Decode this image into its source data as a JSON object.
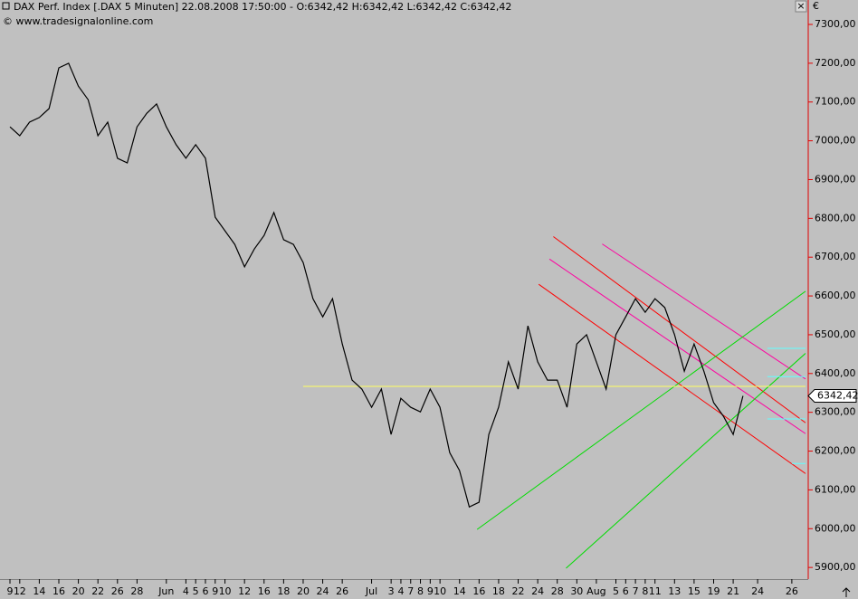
{
  "chart_data": {
    "type": "line",
    "title": "DAX Perf. Index [.DAX  5 Minuten] 22.08.2008 17:50:00 - O:6342,42 H:6342,42 L:6342,42 C:6342,42",
    "subtitle": "© www.tradesignalonline.com",
    "currency_symbol": "€",
    "close_symbol": "×",
    "x": [
      0,
      1,
      2,
      3,
      4,
      5,
      6,
      7,
      8,
      9,
      10,
      11,
      12,
      13,
      14,
      15,
      16,
      17,
      18,
      19,
      20,
      21,
      22,
      23,
      24,
      25,
      26,
      27,
      28,
      29,
      30,
      31,
      32,
      33,
      34,
      35,
      36,
      37,
      38,
      39,
      40,
      41,
      42,
      43,
      44,
      45,
      46,
      47,
      48,
      49,
      50,
      51,
      52,
      53,
      54,
      55,
      56,
      57,
      58,
      59,
      60,
      61,
      62,
      63,
      64,
      65,
      66,
      67,
      68,
      69,
      70,
      71,
      72,
      73,
      74,
      75
    ],
    "series": [
      {
        "color": "#000000",
        "values": [
          7036,
          7013,
          7048,
          7060,
          7083,
          7188,
          7200,
          7141,
          7106,
          7013,
          7048,
          6955,
          6943,
          7036,
          7071,
          7095,
          7036,
          6990,
          6955,
          6990,
          6955,
          6803,
          6768,
          6733,
          6675,
          6721,
          6756,
          6815,
          6745,
          6733,
          6686,
          6593,
          6546,
          6593,
          6476,
          6383,
          6360,
          6313,
          6360,
          6243,
          6336,
          6313,
          6301,
          6360,
          6313,
          6196,
          6150,
          6056,
          6068,
          6243,
          6313,
          6430,
          6360,
          6523,
          6430,
          6383,
          6383,
          6313,
          6476,
          6500,
          6430,
          6360,
          6500,
          6546,
          6593,
          6558,
          6593,
          6570,
          6500,
          6406,
          6476,
          6406,
          6325,
          6290,
          6243,
          6342.42
        ]
      }
    ],
    "lines": [
      {
        "color": "#ff0000",
        "x": [
          55.6,
          81.4
        ],
        "values": [
          6753,
          6273
        ]
      },
      {
        "color": "#ff0000",
        "x": [
          54.1,
          81.4
        ],
        "values": [
          6630,
          6142
        ]
      },
      {
        "color": "#ff00a0",
        "x": [
          60.6,
          81.4
        ],
        "values": [
          6734,
          6386
        ]
      },
      {
        "color": "#ff00a0",
        "x": [
          55.2,
          81.4
        ],
        "values": [
          6695,
          6245
        ]
      },
      {
        "color": "#00dd00",
        "x": [
          47.8,
          81.4
        ],
        "values": [
          5998,
          6612
        ]
      },
      {
        "color": "#00dd00",
        "x": [
          56.9,
          81.4
        ],
        "values": [
          5898,
          6452
        ]
      },
      {
        "color": "#ffff60",
        "x": [
          30,
          81.4
        ],
        "values": [
          6367,
          6367
        ]
      },
      {
        "color": "#60ffff",
        "x": [
          77.5,
          81.4
        ],
        "values": [
          6465,
          6465
        ]
      },
      {
        "color": "#60ffff",
        "x": [
          77.5,
          81.4
        ],
        "values": [
          6392,
          6392
        ]
      },
      {
        "color": "#60ffff",
        "x": [
          77.5,
          81.4
        ],
        "values": [
          6283,
          6283
        ]
      },
      {
        "color": "#60ffff",
        "x": [
          80,
          81.4
        ],
        "values": [
          6168,
          6168
        ]
      }
    ],
    "last_label": {
      "value": 6342.42,
      "label": "6342,42"
    },
    "xlim": [
      -1.02,
      81.4
    ],
    "ylim": [
      5870,
      7363
    ],
    "yticks": [
      {
        "value": 5900,
        "label": "5900,00"
      },
      {
        "value": 6000,
        "label": "6000,00"
      },
      {
        "value": 6100,
        "label": "6100,00"
      },
      {
        "value": 6200,
        "label": "6200,00"
      },
      {
        "value": 6300,
        "label": "6300,00"
      },
      {
        "value": 6400,
        "label": "6400,00"
      },
      {
        "value": 6500,
        "label": "6500,00"
      },
      {
        "value": 6600,
        "label": "6600,00"
      },
      {
        "value": 6700,
        "label": "6700,00"
      },
      {
        "value": 6800,
        "label": "6800,00"
      },
      {
        "value": 6900,
        "label": "6900,00"
      },
      {
        "value": 7000,
        "label": "7000,00"
      },
      {
        "value": 7100,
        "label": "7100,00"
      },
      {
        "value": 7200,
        "label": "7200,00"
      },
      {
        "value": 7300,
        "label": "7300,00"
      }
    ],
    "xticks": [
      {
        "value": 0,
        "label": "9"
      },
      {
        "value": 1,
        "label": "12"
      },
      {
        "value": 3,
        "label": "14"
      },
      {
        "value": 5,
        "label": "16"
      },
      {
        "value": 7,
        "label": "20"
      },
      {
        "value": 9,
        "label": "22"
      },
      {
        "value": 11,
        "label": "26"
      },
      {
        "value": 13,
        "label": "28"
      },
      {
        "value": 16,
        "label": "Jun"
      },
      {
        "value": 18,
        "label": "4"
      },
      {
        "value": 19,
        "label": "5"
      },
      {
        "value": 20,
        "label": "6"
      },
      {
        "value": 21,
        "label": "9"
      },
      {
        "value": 22,
        "label": "10"
      },
      {
        "value": 24,
        "label": "12"
      },
      {
        "value": 26,
        "label": "16"
      },
      {
        "value": 28,
        "label": "18"
      },
      {
        "value": 30,
        "label": "20"
      },
      {
        "value": 32,
        "label": "24"
      },
      {
        "value": 34,
        "label": "26"
      },
      {
        "value": 37,
        "label": "Jul"
      },
      {
        "value": 39,
        "label": "3"
      },
      {
        "value": 40,
        "label": "4"
      },
      {
        "value": 41,
        "label": "7"
      },
      {
        "value": 42,
        "label": "8"
      },
      {
        "value": 43,
        "label": "9"
      },
      {
        "value": 44,
        "label": "10"
      },
      {
        "value": 46,
        "label": "14"
      },
      {
        "value": 48,
        "label": "16"
      },
      {
        "value": 50,
        "label": "18"
      },
      {
        "value": 52,
        "label": "22"
      },
      {
        "value": 54,
        "label": "24"
      },
      {
        "value": 56,
        "label": "28"
      },
      {
        "value": 58,
        "label": "30"
      },
      {
        "value": 60,
        "label": "Aug"
      },
      {
        "value": 62,
        "label": "5"
      },
      {
        "value": 63,
        "label": "6"
      },
      {
        "value": 64,
        "label": "7"
      },
      {
        "value": 65,
        "label": "8"
      },
      {
        "value": 66,
        "label": "11"
      },
      {
        "value": 68,
        "label": "13"
      },
      {
        "value": 70,
        "label": "15"
      },
      {
        "value": 72,
        "label": "19"
      },
      {
        "value": 74,
        "label": "21"
      },
      {
        "value": 76.5,
        "label": "24"
      },
      {
        "value": 80,
        "label": "26"
      }
    ]
  }
}
